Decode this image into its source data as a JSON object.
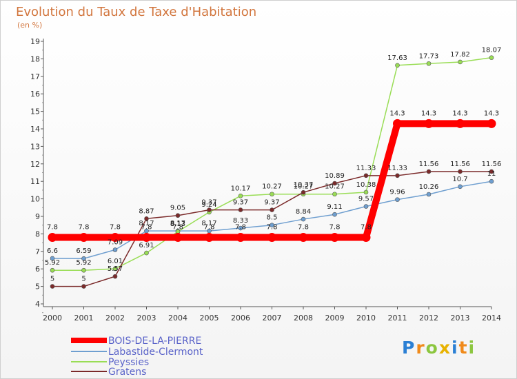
{
  "chart_data": {
    "type": "line",
    "title": "Evolution du Taux de Taxe d'Habitation",
    "subtitle": "(en %)",
    "categories": [
      "2000",
      "2001",
      "2002",
      "2003",
      "2004",
      "2005",
      "2006",
      "2007",
      "2008",
      "2009",
      "2010",
      "2011",
      "2012",
      "2013",
      "2014"
    ],
    "ylim": [
      4,
      19
    ],
    "yticks": [
      "4",
      "5",
      "6",
      "7",
      "8",
      "9",
      "10",
      "11",
      "12",
      "13",
      "14",
      "15",
      "16",
      "17",
      "18",
      "19"
    ],
    "grid": false,
    "legend_position": "bottom-left",
    "series": [
      {
        "name": "BOIS-DE-LA-PIERRE",
        "color": "#ff0000",
        "values": [
          7.8,
          7.8,
          7.8,
          7.8,
          7.8,
          7.8,
          7.8,
          7.8,
          7.8,
          7.8,
          7.8,
          14.3,
          14.3,
          14.3,
          14.3
        ],
        "labels": [
          "7.8",
          "7.8",
          "7.8",
          "7.8",
          "7.8",
          "7.8",
          "7.8",
          "7.8",
          "7.8",
          "7.8",
          "7.8",
          "14.3",
          "14.3",
          "14.3",
          "14.3"
        ]
      },
      {
        "name": "Labastide-Clermont",
        "color": "#6f9fd0",
        "values": [
          6.6,
          6.59,
          7.09,
          8.17,
          8.17,
          8.17,
          8.33,
          8.5,
          8.84,
          9.11,
          9.57,
          9.96,
          10.26,
          10.7,
          11
        ],
        "labels": [
          "6.6",
          "6.59",
          "7.09",
          "8.17",
          "8.17",
          "8.17",
          "8.33",
          "8.5",
          "8.84",
          "9.11",
          "9.57",
          "9.96",
          "10.26",
          "10.7",
          "11"
        ]
      },
      {
        "name": "Peyssies",
        "color": "#99dd55",
        "values": [
          5.92,
          5.92,
          6.01,
          6.91,
          8.13,
          9.24,
          10.17,
          10.27,
          10.27,
          10.27,
          10.38,
          17.63,
          17.73,
          17.82,
          18.07
        ],
        "labels": [
          "5.92",
          "5.92",
          "6.01",
          "6.91",
          "8.13",
          "9.24",
          "10.17",
          "10.27",
          "10.27",
          "10.27",
          "10.38",
          "17.63",
          "17.73",
          "17.82",
          "18.07"
        ]
      },
      {
        "name": "Gratens",
        "color": "#7b2a2a",
        "values": [
          5,
          5,
          5.57,
          8.87,
          9.05,
          9.37,
          9.37,
          9.37,
          10.37,
          10.89,
          11.33,
          11.33,
          11.56,
          11.56,
          11.56
        ],
        "labels": [
          "5",
          "5",
          "5.57",
          "8.87",
          "9.05",
          "9.37",
          "9.37",
          "9.37",
          "10.37",
          "10.89",
          "11.33",
          "11.33",
          "11.56",
          "11.56",
          "11.56"
        ]
      }
    ]
  },
  "logo": {
    "letters": [
      "P",
      "r",
      "o",
      "x",
      "i",
      "t",
      "i"
    ],
    "colors": [
      "#2a7fd4",
      "#f08a1a",
      "#8cc63f",
      "#e8b200",
      "#2a7fd4",
      "#f08a1a",
      "#8cc63f"
    ]
  }
}
